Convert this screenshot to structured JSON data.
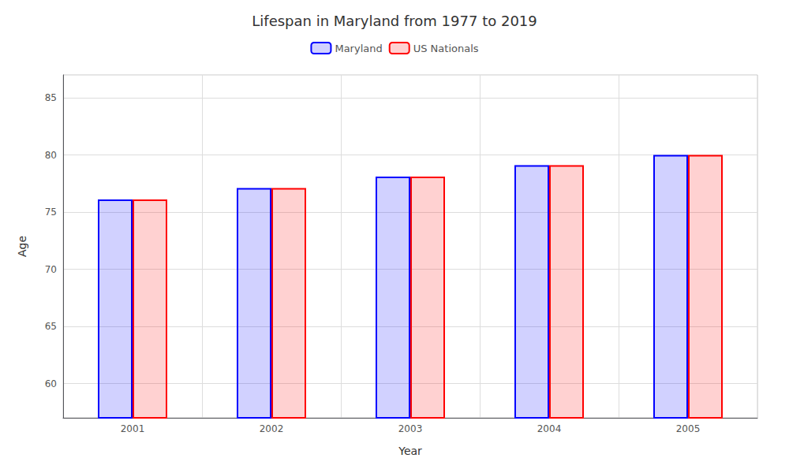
{
  "chart_data": {
    "type": "bar",
    "title": "Lifespan in Maryland from 1977 to 2019",
    "x_label": "Year",
    "y_label": "Age",
    "categories": [
      "2001",
      "2002",
      "2003",
      "2004",
      "2005"
    ],
    "series": [
      {
        "name": "Maryland",
        "color": "#0000ff",
        "values": [
          76.1,
          77.1,
          78.1,
          79.1,
          80.0
        ]
      },
      {
        "name": "US Nationals",
        "color": "#ff0000",
        "values": [
          76.1,
          77.1,
          78.1,
          79.1,
          80.0
        ]
      }
    ],
    "ylim": [
      57,
      87
    ],
    "yticks": [
      60,
      65,
      70,
      75,
      80,
      85
    ],
    "grid": true,
    "legend": "top"
  }
}
